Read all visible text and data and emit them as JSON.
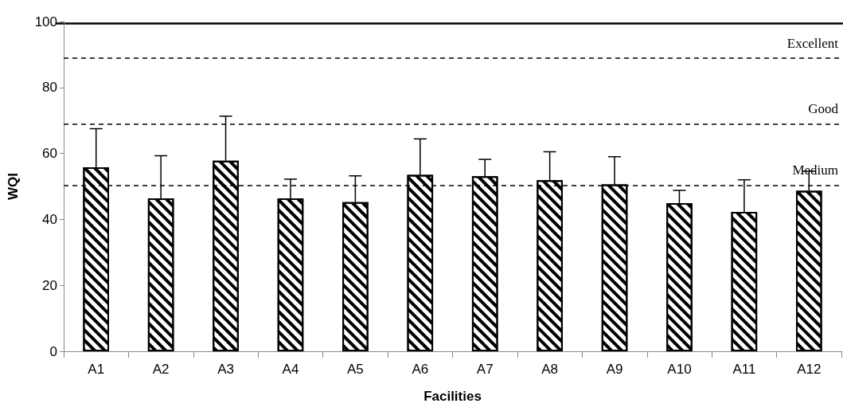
{
  "chart_data": {
    "type": "bar",
    "xlabel": "Facilities",
    "ylabel": "WQI",
    "categories": [
      "A1",
      "A2",
      "A3",
      "A4",
      "A5",
      "A6",
      "A7",
      "A8",
      "A9",
      "A10",
      "A11",
      "A12"
    ],
    "values": [
      55.8,
      46.4,
      57.8,
      46.4,
      45.2,
      53.5,
      53.1,
      51.9,
      50.6,
      44.9,
      42.3,
      48.7
    ],
    "errors": [
      [
        55.8,
        67.5
      ],
      [
        46.4,
        59.3
      ],
      [
        57.8,
        71.3
      ],
      [
        46.4,
        52.2
      ],
      [
        45.2,
        53.2
      ],
      [
        53.5,
        64.4
      ],
      [
        53.1,
        58.2
      ],
      [
        51.9,
        60.5
      ],
      [
        50.6,
        59
      ],
      [
        44.9,
        48.8
      ],
      [
        42.3,
        52
      ],
      [
        48.7,
        54.6
      ]
    ],
    "color": "#000000",
    "ylim": [
      0,
      100
    ],
    "yticks": [
      0,
      20,
      40,
      60,
      80,
      100
    ],
    "grid": false,
    "ref_lines": [
      {
        "axis": "y",
        "value": 89,
        "label": "Excellent",
        "line_style": "dashed",
        "color": "#000000"
      },
      {
        "axis": "y",
        "value": 69,
        "label": "Good",
        "line_style": "dashed",
        "color": "#000000"
      },
      {
        "axis": "y",
        "value": 50.4,
        "label": "Medium",
        "line_style": "dashed",
        "color": "#000000"
      }
    ]
  }
}
